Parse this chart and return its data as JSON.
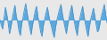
{
  "values": [
    0.0,
    -0.6,
    -1.0,
    0.2,
    1.4,
    0.6,
    -0.3,
    -1.5,
    -0.8,
    0.1,
    0.9,
    1.6,
    0.4,
    -0.2,
    -1.2,
    -1.7,
    -0.4,
    0.3,
    1.1,
    1.8,
    0.8,
    -0.1,
    -0.9,
    -1.6,
    -0.5,
    0.2,
    1.0,
    1.5,
    0.3,
    -0.4,
    -1.3,
    -1.8,
    -0.6,
    0.1,
    0.8,
    1.4,
    0.5,
    -0.2,
    -0.7,
    -1.4,
    -1.9,
    -0.8,
    0.0,
    0.6,
    1.2,
    1.7,
    0.7,
    -0.1,
    -0.8,
    -1.5,
    -0.5,
    0.2,
    1.0,
    1.6,
    0.6,
    -0.3,
    -1.1,
    -1.7,
    -0.4,
    0.2,
    0.9,
    1.5,
    0.5,
    -0.4,
    -1.2,
    -1.8,
    -0.7,
    0.1,
    0.7,
    1.3,
    0.4,
    -0.5,
    -1.3,
    -1.0,
    -0.2,
    0.5,
    1.1,
    1.7,
    0.6,
    -0.3
  ],
  "fill_color": "#5ba8df",
  "line_color": "#4a98d0",
  "background_color": "#e8e8e8",
  "linewidth": 0.7,
  "ylim": [
    -2.2,
    2.2
  ]
}
